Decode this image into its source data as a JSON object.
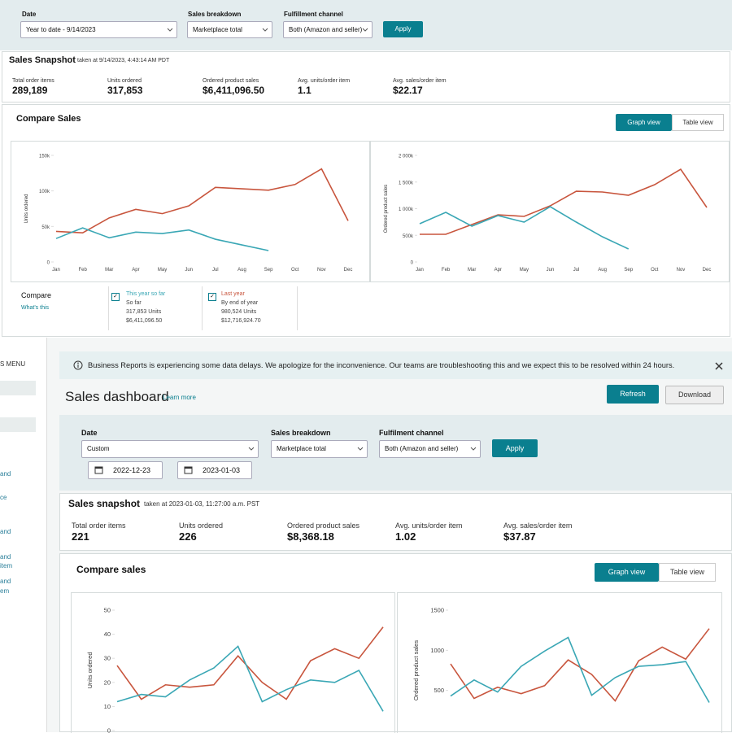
{
  "top": {
    "filters": {
      "date_label": "Date",
      "date_value": "Year to date - 9/14/2023",
      "breakdown_label": "Sales breakdown",
      "breakdown_value": "Marketplace total",
      "channel_label": "Fulfillment channel",
      "channel_value": "Both (Amazon and seller)",
      "apply": "Apply"
    },
    "snapshot": {
      "title": "Sales Snapshot",
      "taken": "taken at 9/14/2023, 4:43:14 AM PDT",
      "metrics": [
        {
          "label": "Total order items",
          "value": "289,189"
        },
        {
          "label": "Units ordered",
          "value": "317,853"
        },
        {
          "label": "Ordered product sales",
          "value": "$6,411,096.50"
        },
        {
          "label": "Avg. units/order item",
          "value": "1.1"
        },
        {
          "label": "Avg. sales/order item",
          "value": "$22.17"
        }
      ]
    },
    "compare": {
      "title": "Compare Sales",
      "graph_view": "Graph view",
      "table_view": "Table view",
      "charts": [
        {
          "type": "line",
          "y_label": "Units ordered",
          "ylim": [
            0,
            150000
          ],
          "yticks": [
            0,
            {
              "value": 50000,
              "label": "50k"
            },
            {
              "value": 100000,
              "label": "100k"
            },
            {
              "value": 150000,
              "label": "150k"
            }
          ],
          "categories": [
            "Jan",
            "Feb",
            "Mar",
            "Apr",
            "May",
            "Jun",
            "Jul",
            "Aug",
            "Sep",
            "Oct",
            "Nov",
            "Dec"
          ],
          "series": [
            {
              "color": "#c8553d",
              "values": [
                43000,
                41000,
                62000,
                74000,
                68000,
                79000,
                105000,
                103000,
                101000,
                109000,
                131000,
                58000
              ]
            },
            {
              "color": "#3aa7b5",
              "values": [
                33000,
                48000,
                34000,
                42000,
                40000,
                45000,
                32000,
                24000,
                16000,
                null,
                null,
                null
              ]
            }
          ]
        },
        {
          "type": "line",
          "y_label": "Ordered product sales",
          "ylim": [
            0,
            2000000
          ],
          "yticks": [
            0,
            {
              "value": 500000,
              "label": "500k"
            },
            {
              "value": 1000000,
              "label": "1 000k"
            },
            {
              "value": 1500000,
              "label": "1 500k"
            },
            {
              "value": 2000000,
              "label": "2 000k"
            }
          ],
          "categories": [
            "Jan",
            "Feb",
            "Mar",
            "Apr",
            "May",
            "Jun",
            "Jul",
            "Aug",
            "Sep",
            "Oct",
            "Nov",
            "Dec"
          ],
          "series": [
            {
              "color": "#c8553d",
              "values": [
                519000,
                519000,
                702000,
                885000,
                855000,
                1053000,
                1328000,
                1313000,
                1252000,
                1450000,
                1740000,
                1023000
              ]
            },
            {
              "color": "#3aa7b5",
              "values": [
                717000,
                931000,
                672000,
                870000,
                748000,
                1038000,
                748000,
                473000,
                244000,
                null,
                null,
                null
              ]
            }
          ]
        }
      ],
      "legend": {
        "compare": "Compare",
        "whats_this": "What's this",
        "items": [
          {
            "title": "This year so far",
            "sub": "So far",
            "units": "317,853 Units",
            "sales": "$6,411,096.50",
            "color": "#3aa7b5"
          },
          {
            "title": "Last year",
            "sub": "By end of year",
            "units": "980,524 Units",
            "sales": "$12,716,924.70",
            "color": "#c8553d"
          }
        ]
      }
    }
  },
  "bottom": {
    "sidebar": {
      "menu": "S MENU",
      "items": [
        "and",
        "ce",
        "and",
        "and",
        "item",
        "and",
        "em"
      ]
    },
    "banner": "Business Reports is experiencing some data delays. We apologize for the inconvenience. Our teams are troubleshooting this and we expect this to be resolved within 24 hours.",
    "header": {
      "title": "Sales dashboard",
      "learn_more": "Learn more",
      "refresh": "Refresh",
      "download": "Download"
    },
    "filters": {
      "date_label": "Date",
      "date_value": "Custom",
      "start": "2022-12-23",
      "end": "2023-01-03",
      "breakdown_label": "Sales breakdown",
      "breakdown_value": "Marketplace total",
      "channel_label": "Fulfilment channel",
      "channel_value": "Both (Amazon and seller)",
      "apply": "Apply"
    },
    "snapshot": {
      "title": "Sales snapshot",
      "taken": "taken at 2023-01-03, 11:27:00 a.m. PST",
      "metrics": [
        {
          "label": "Total order items",
          "value": "221"
        },
        {
          "label": "Units ordered",
          "value": "226"
        },
        {
          "label": "Ordered product sales",
          "value": "$8,368.18"
        },
        {
          "label": "Avg. units/order item",
          "value": "1.02"
        },
        {
          "label": "Avg. sales/order item",
          "value": "$37.87"
        }
      ]
    },
    "compare": {
      "title": "Compare sales",
      "graph_view": "Graph view",
      "table_view": "Table view",
      "charts": [
        {
          "type": "line",
          "y_label": "Units ordered",
          "ylim": [
            0,
            50
          ],
          "yticks": [
            0,
            10,
            20,
            30,
            40,
            50
          ],
          "categories": [
            null,
            null,
            null,
            null,
            null,
            null,
            null,
            null,
            null,
            null,
            null,
            null
          ],
          "series": [
            {
              "color": "#c8553d",
              "values": [
                27,
                13,
                19,
                18,
                19,
                31,
                20,
                13,
                29,
                34,
                30,
                43
              ]
            },
            {
              "color": "#3aa7b5",
              "values": [
                12,
                15,
                14,
                21,
                26,
                35,
                12,
                17,
                21,
                20,
                25,
                8
              ]
            }
          ]
        },
        {
          "type": "line",
          "y_label": "Ordered product sales",
          "ylim": [
            0,
            1500
          ],
          "yticks": [
            500,
            1000,
            1500
          ],
          "categories": [
            null,
            null,
            null,
            null,
            null,
            null,
            null,
            null,
            null,
            null,
            null,
            null
          ],
          "series": [
            {
              "color": "#c8553d",
              "values": [
                830,
                400,
                540,
                460,
                560,
                880,
                700,
                370,
                870,
                1040,
                890,
                1270
              ]
            },
            {
              "color": "#3aa7b5",
              "values": [
                430,
                630,
                480,
                800,
                990,
                1160,
                440,
                660,
                800,
                820,
                860,
                350
              ]
            }
          ]
        }
      ]
    }
  }
}
